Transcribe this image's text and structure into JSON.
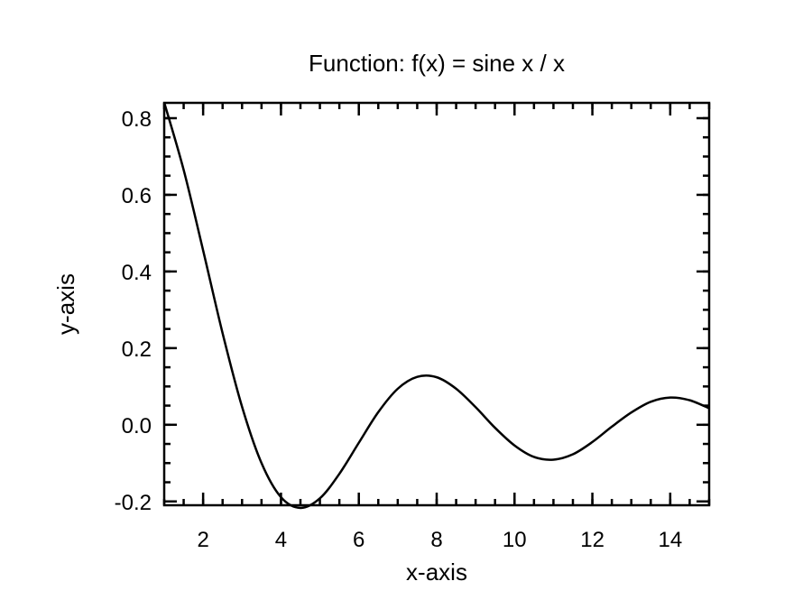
{
  "chart_data": {
    "type": "line",
    "title": "Function: f(x) = sine x / x",
    "xlabel": "x-axis",
    "ylabel": "y-axis",
    "xlim": [
      1,
      15
    ],
    "ylim": [
      -0.21,
      0.84
    ],
    "grid": false,
    "x_ticks": [
      {
        "value": 2,
        "label": "2"
      },
      {
        "value": 4,
        "label": "4"
      },
      {
        "value": 6,
        "label": "6"
      },
      {
        "value": 8,
        "label": "8"
      },
      {
        "value": 10,
        "label": "10"
      },
      {
        "value": 12,
        "label": "12"
      },
      {
        "value": 14,
        "label": "14"
      }
    ],
    "x_minor_step": 0.5,
    "y_ticks": [
      {
        "value": -0.2,
        "label": "-0.2"
      },
      {
        "value": 0.0,
        "label": "0.0"
      },
      {
        "value": 0.2,
        "label": "0.2"
      },
      {
        "value": 0.4,
        "label": "0.4"
      },
      {
        "value": 0.6,
        "label": "0.6"
      },
      {
        "value": 0.8,
        "label": "0.8"
      }
    ],
    "y_minor_step": 0.05,
    "series": [
      {
        "color": "#000000",
        "x": [
          1.0,
          1.5,
          2.0,
          2.5,
          3.0,
          3.5,
          4.0,
          4.5,
          5.0,
          5.5,
          6.0,
          6.5,
          7.0,
          7.5,
          8.0,
          8.5,
          9.0,
          9.5,
          10.0,
          10.5,
          11.0,
          11.5,
          12.0,
          12.5,
          13.0,
          13.5,
          14.0,
          14.5,
          15.0
        ],
        "y": [
          0.841,
          0.665,
          0.455,
          0.239,
          0.047,
          -0.1,
          -0.189,
          -0.217,
          -0.192,
          -0.128,
          -0.047,
          0.033,
          0.094,
          0.125,
          0.124,
          0.094,
          0.046,
          -0.008,
          -0.054,
          -0.084,
          -0.091,
          -0.077,
          -0.045,
          -0.005,
          0.032,
          0.06,
          0.071,
          0.064,
          0.043
        ]
      }
    ]
  }
}
